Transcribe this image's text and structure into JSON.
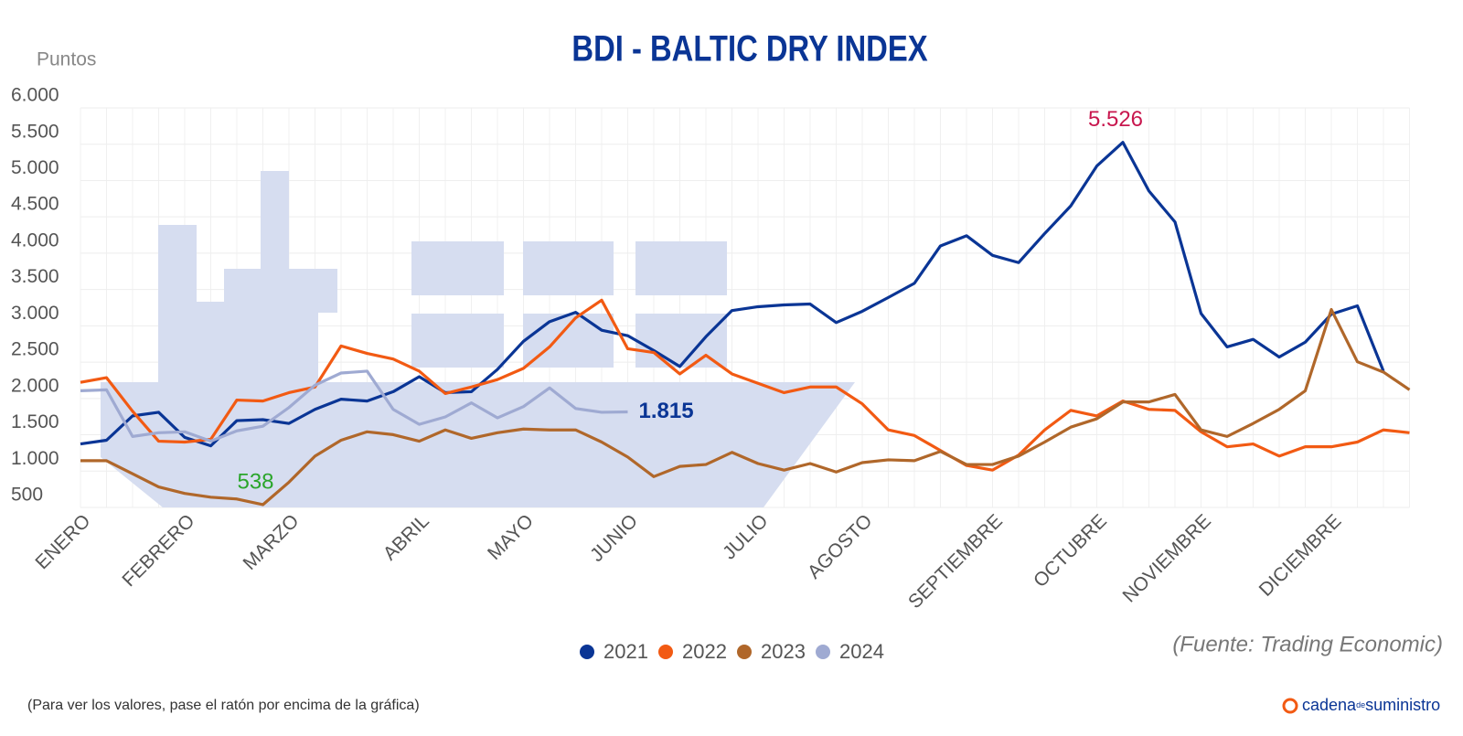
{
  "chart_data": {
    "type": "line",
    "title": "BDI - BALTIC DRY INDEX",
    "y_label": "Puntos",
    "source": "(Fuente: Trading Economic)",
    "note": "(Para ver los valores, pase el ratón por encima de la gráfica)",
    "logo": {
      "main": "cadena",
      "small": "de",
      "end": "suministro"
    },
    "categories": [
      "ENERO",
      null,
      null,
      null,
      "FEBRERO",
      null,
      null,
      null,
      "MARZO",
      null,
      null,
      null,
      null,
      "ABRIL",
      null,
      null,
      null,
      "MAYO",
      null,
      null,
      null,
      "JUNIO",
      null,
      null,
      null,
      null,
      "JULIO",
      null,
      null,
      null,
      "AGOSTO",
      null,
      null,
      null,
      null,
      "SEPTIEMBRE",
      null,
      null,
      null,
      "OCTUBRE",
      null,
      null,
      null,
      "NOVIEMBRE",
      null,
      null,
      null,
      null,
      "DICIEMBRE",
      null,
      null,
      null
    ],
    "ylim": [
      500,
      6000
    ],
    "yticks": [
      500,
      {
        "value": 1000,
        "label": "1.000"
      },
      {
        "value": 1500,
        "label": "1.500"
      },
      {
        "value": 2000,
        "label": "2.000"
      },
      {
        "value": 2500,
        "label": "2.500"
      },
      {
        "value": 3000,
        "label": "3.000"
      },
      {
        "value": 3500,
        "label": "3.500"
      },
      {
        "value": 4000,
        "label": "4.000"
      },
      {
        "value": 4500,
        "label": "4.500"
      },
      {
        "value": 5000,
        "label": "5.000"
      },
      {
        "value": 5500,
        "label": "5.500"
      },
      {
        "value": 6000,
        "label": "6.000"
      }
    ],
    "grid": true,
    "legend": "bottom",
    "series": [
      {
        "name": "2021",
        "color": "#0a3595",
        "value_label_color": "#c8174e",
        "values": [
          1374,
          1425,
          1760,
          1810,
          1464,
          1348,
          1695,
          1708,
          1656,
          1850,
          1990,
          1965,
          2093,
          2300,
          2080,
          2093,
          2400,
          2787,
          3057,
          3186,
          2940,
          2864,
          2660,
          2440,
          2850,
          3210,
          3263,
          3288,
          3300,
          3045,
          3200,
          3390,
          3585,
          4100,
          4240,
          3970,
          3870,
          4270,
          4650,
          5200,
          5526,
          4856,
          4430,
          3170,
          2710,
          2813,
          2570,
          2775,
          3160,
          3275,
          2376,
          null
        ],
        "value_labels": [
          null,
          null,
          null,
          null,
          null,
          null,
          null,
          null,
          null,
          null,
          null,
          null,
          null,
          null,
          null,
          null,
          null,
          null,
          null,
          null,
          null,
          null,
          null,
          null,
          null,
          null,
          null,
          null,
          null,
          null,
          null,
          null,
          null,
          null,
          null,
          null,
          null,
          null,
          null,
          null,
          "5.526",
          null,
          null,
          null,
          null,
          null,
          null,
          null,
          null,
          null,
          null,
          null
        ]
      },
      {
        "name": "2022",
        "color": "#f25a13",
        "values": [
          2222,
          2286,
          1824,
          1412,
          1400,
          1438,
          1978,
          1965,
          2080,
          2158,
          2723,
          2620,
          2543,
          2376,
          2068,
          2158,
          2260,
          2415,
          2710,
          3109,
          3353,
          2684,
          2633,
          2338,
          2595,
          2338,
          2209,
          2080,
          2158,
          2158,
          1926,
          1567,
          1490,
          1284,
          1078,
          1014,
          1220,
          1567,
          1836,
          1760,
          1965,
          1850,
          1836,
          1541,
          1335,
          1374,
          1207,
          1335,
          1335,
          1400,
          1567,
          1528
        ]
      },
      {
        "name": "2023",
        "color": "#b0672a",
        "value_label_color": "#2aa52a",
        "values": [
          1143,
          1143,
          963,
          783,
          693,
          641,
          616,
          538,
          847,
          1207,
          1425,
          1541,
          1502,
          1412,
          1567,
          1451,
          1528,
          1579,
          1567,
          1567,
          1400,
          1194,
          924,
          1065,
          1091,
          1258,
          1104,
          1014,
          1104,
          988,
          1117,
          1155,
          1143,
          1271,
          1091,
          1091,
          1207,
          1400,
          1605,
          1720,
          1952,
          1952,
          2055,
          1567,
          1477,
          1656,
          1850,
          2106,
          3224,
          2505,
          2363,
          2119
        ],
        "value_labels": [
          null,
          null,
          null,
          null,
          null,
          null,
          null,
          "538",
          null,
          null,
          null,
          null,
          null,
          null,
          null,
          null,
          null,
          null,
          null,
          null,
          null,
          null,
          null,
          null,
          null,
          null,
          null,
          null,
          null,
          null,
          null,
          null,
          null,
          null,
          null,
          null,
          null,
          null,
          null,
          null,
          null,
          null,
          null,
          null,
          null,
          null,
          null,
          null,
          null,
          null,
          null,
          null
        ]
      },
      {
        "name": "2024",
        "color": "#9faad2",
        "value_label_color": "#0a3595",
        "values": [
          2106,
          2119,
          1477,
          1528,
          1541,
          1412,
          1554,
          1618,
          1875,
          2183,
          2350,
          2376,
          1850,
          1644,
          1746,
          1939,
          1733,
          1888,
          2145,
          1862,
          1810,
          1815,
          null,
          null,
          null,
          null,
          null,
          null,
          null,
          null,
          null,
          null,
          null,
          null,
          null,
          null,
          null,
          null,
          null,
          null,
          null,
          null,
          null,
          null,
          null,
          null,
          null,
          null,
          null,
          null,
          null,
          null
        ],
        "value_labels": [
          null,
          null,
          null,
          null,
          null,
          null,
          null,
          null,
          null,
          null,
          null,
          null,
          null,
          null,
          null,
          null,
          null,
          null,
          null,
          null,
          null,
          "1.815",
          null,
          null,
          null,
          null,
          null,
          null,
          null,
          null,
          null,
          null,
          null,
          null,
          null,
          null,
          null,
          null,
          null,
          null,
          null,
          null,
          null,
          null,
          null,
          null,
          null,
          null,
          null,
          null,
          null,
          null
        ]
      }
    ]
  }
}
